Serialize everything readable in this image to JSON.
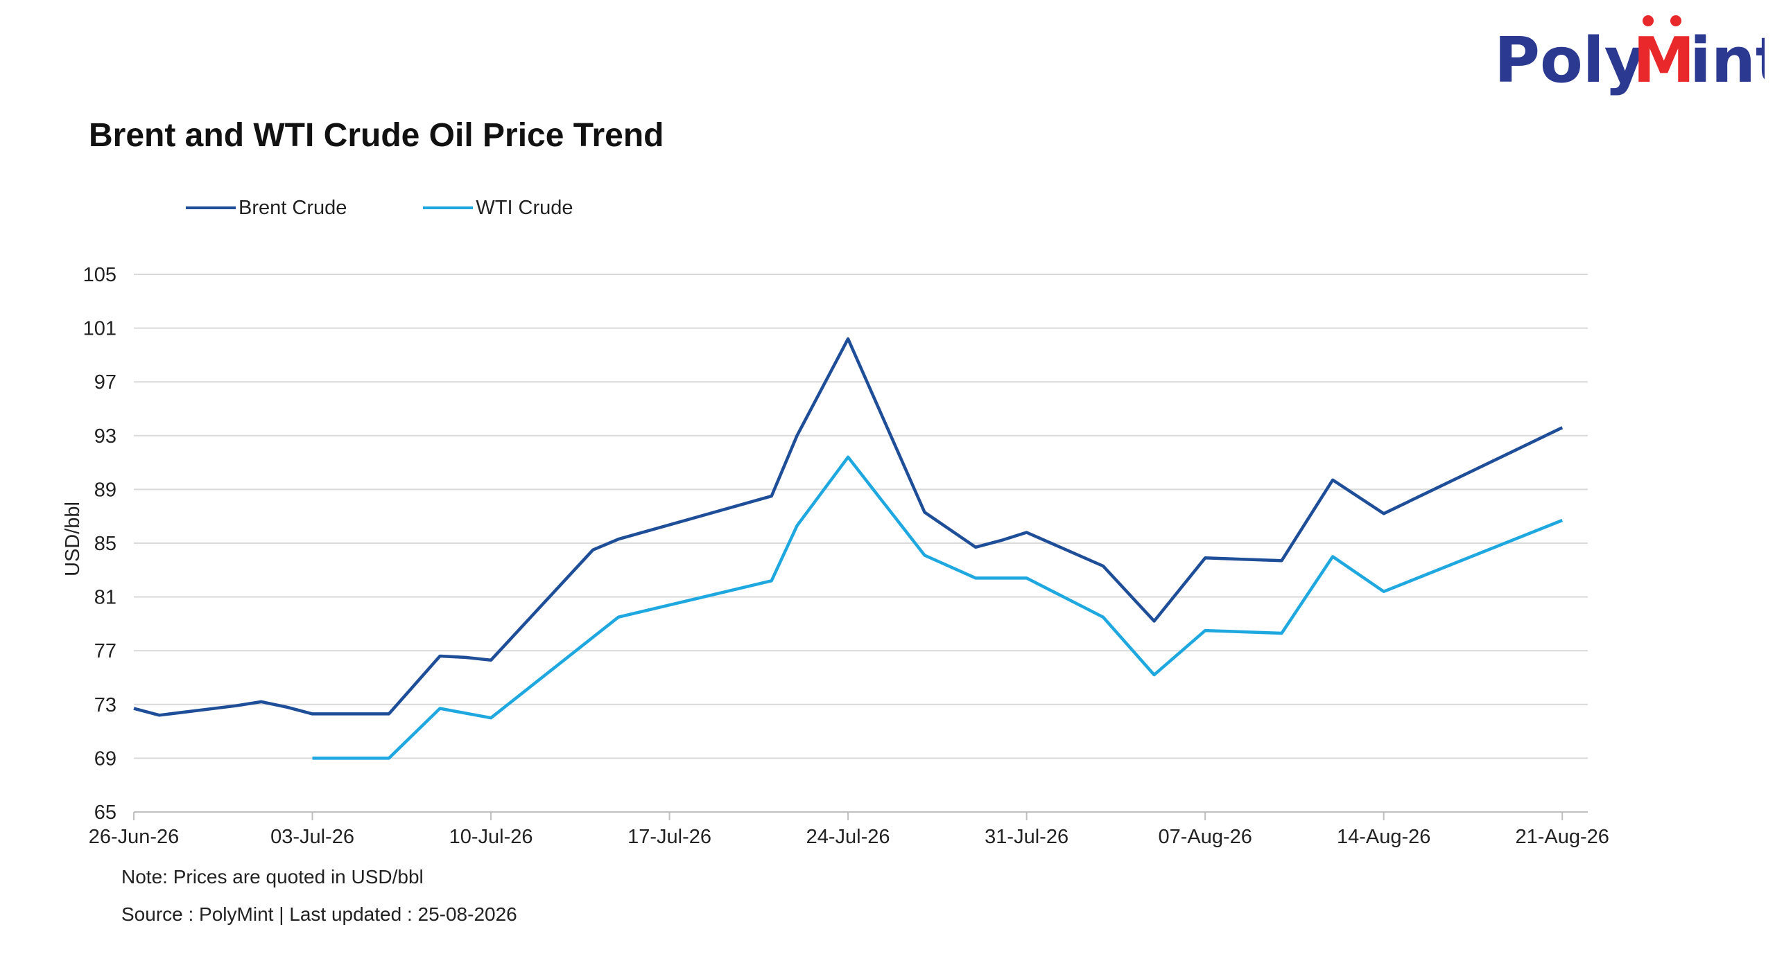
{
  "brand": {
    "name": "PolyMint",
    "primary_color": "#2b3990",
    "accent_color": "#e8282b"
  },
  "chart_data": {
    "type": "line",
    "title": "Brent and WTI Crude Oil Price Trend",
    "ylabel": "USD/bbl",
    "xlabel": "",
    "ylim": [
      65,
      105
    ],
    "yticks": [
      65,
      69,
      73,
      77,
      81,
      85,
      89,
      93,
      97,
      101,
      105
    ],
    "xlim": [
      "2026-06-26",
      "2026-08-22"
    ],
    "xtick_labels": [
      "26-Jun-26",
      "03-Jul-26",
      "10-Jul-26",
      "17-Jul-26",
      "24-Jul-26",
      "31-Jul-26",
      "07-Aug-26",
      "14-Aug-26",
      "21-Aug-26"
    ],
    "xtick_dates": [
      "2026-06-26",
      "2026-07-03",
      "2026-07-10",
      "2026-07-17",
      "2026-07-24",
      "2026-07-31",
      "2026-08-07",
      "2026-08-14",
      "2026-08-21"
    ],
    "grid": true,
    "legend_position": "top-left",
    "series": [
      {
        "name": "Brent Crude",
        "color": "#1f4e99",
        "x": [
          "2026-06-26",
          "2026-06-27",
          "2026-06-30",
          "2026-07-01",
          "2026-07-02",
          "2026-07-03",
          "2026-07-06",
          "2026-07-08",
          "2026-07-09",
          "2026-07-10",
          "2026-07-14",
          "2026-07-15",
          "2026-07-21",
          "2026-07-22",
          "2026-07-24",
          "2026-07-27",
          "2026-07-29",
          "2026-07-30",
          "2026-07-31",
          "2026-08-03",
          "2026-08-05",
          "2026-08-07",
          "2026-08-10",
          "2026-08-12",
          "2026-08-14",
          "2026-08-21"
        ],
        "values": [
          72.7,
          72.2,
          72.9,
          73.2,
          72.8,
          72.3,
          72.3,
          76.6,
          76.5,
          76.3,
          84.5,
          85.3,
          88.5,
          93.0,
          100.2,
          87.3,
          84.7,
          85.2,
          85.8,
          83.3,
          79.2,
          83.9,
          83.7,
          89.7,
          87.2,
          93.6
        ]
      },
      {
        "name": "WTI Crude",
        "color": "#1fa8e0",
        "x": [
          "2026-07-03",
          "2026-07-06",
          "2026-07-08",
          "2026-07-10",
          "2026-07-15",
          "2026-07-21",
          "2026-07-22",
          "2026-07-24",
          "2026-07-27",
          "2026-07-29",
          "2026-07-31",
          "2026-08-03",
          "2026-08-05",
          "2026-08-07",
          "2026-08-10",
          "2026-08-12",
          "2026-08-14",
          "2026-08-21"
        ],
        "values": [
          69.0,
          69.0,
          72.7,
          72.0,
          79.5,
          82.2,
          86.3,
          91.4,
          84.1,
          82.4,
          82.4,
          79.5,
          75.2,
          78.5,
          78.3,
          84.0,
          81.4,
          86.7
        ]
      }
    ]
  },
  "notes": {
    "note": "Note: Prices are  quoted in USD/bbl",
    "source": "Source : PolyMint | Last updated : 25-08-2026"
  }
}
